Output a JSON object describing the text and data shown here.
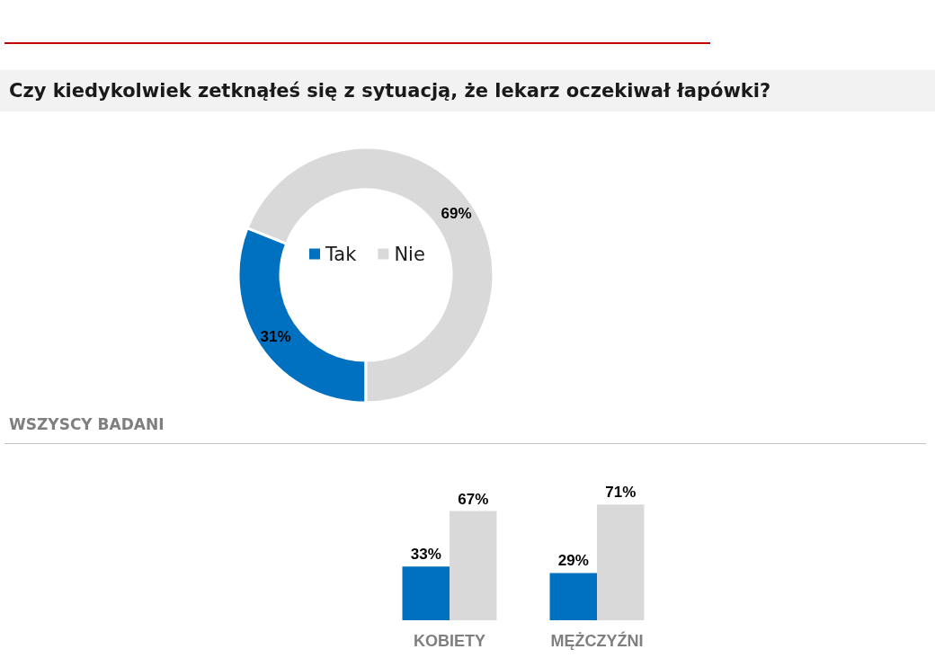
{
  "chart_data": [
    {
      "type": "donut",
      "title": "Czy kiedykolwiek zetknąłeś się z sytuacją, że lekarz oczekiwał łapówki?",
      "categories": [
        "Tak",
        "Nie"
      ],
      "values": [
        31,
        69
      ],
      "colors": [
        "#0070c0",
        "#d9d9d9"
      ],
      "value_labels": [
        "31%",
        "69%"
      ],
      "legend": "center",
      "annotations": [
        "WSZYSCY BADANI"
      ]
    },
    {
      "type": "bar",
      "categories": [
        "KOBIETY",
        "MĘŻCZYŹNI"
      ],
      "series": [
        {
          "color": "#0070c0",
          "values": [
            33,
            29
          ],
          "value_labels": [
            "33%",
            "29%"
          ]
        },
        {
          "color": "#d9d9d9",
          "values": [
            67,
            71
          ],
          "value_labels": [
            "67%",
            "71%"
          ]
        }
      ]
    }
  ]
}
